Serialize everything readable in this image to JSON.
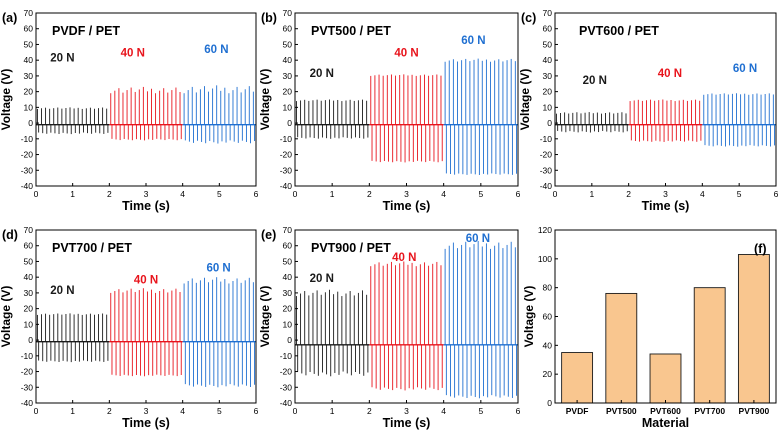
{
  "figure": {
    "panels": [
      "(a)",
      "(b)",
      "(c)",
      "(d)",
      "(e)",
      "(f)"
    ]
  },
  "colors": {
    "n20": "#1a1a1a",
    "n40": "#e8141c",
    "n60": "#1f6fd1",
    "bar_fill": "#f9c68f",
    "bar_edge": "#1a1a1a"
  },
  "chart_data": [
    {
      "type": "line",
      "panel": "(a)",
      "title": "PVDF / PET",
      "xlabel": "Time (s)",
      "ylabel": "Voltage (V)",
      "xlim": [
        0,
        6
      ],
      "ylim": [
        -40,
        70
      ],
      "xticks": [
        0,
        1,
        2,
        3,
        4,
        5,
        6
      ],
      "yticks": [
        -40,
        -30,
        -20,
        -10,
        0,
        10,
        20,
        30,
        40,
        50,
        60,
        70
      ],
      "baseline": -1,
      "series": [
        {
          "name": "20 N",
          "t_start": 0,
          "t_end": 2,
          "pulses": 18,
          "peak_max": 10,
          "peak_min": 9,
          "neg_max": -7,
          "neg_min": -6
        },
        {
          "name": "40 N",
          "t_start": 2,
          "t_end": 4,
          "pulses": 18,
          "peak_max": 23,
          "peak_min": 19,
          "neg_max": -11,
          "neg_min": -10
        },
        {
          "name": "60 N",
          "t_start": 4,
          "t_end": 6,
          "pulses": 18,
          "peak_max": 24,
          "peak_min": 19,
          "neg_max": -13,
          "neg_min": -11
        }
      ]
    },
    {
      "type": "line",
      "panel": "(b)",
      "title": "PVT500 / PET",
      "xlabel": "Time (s)",
      "ylabel": "Voltage (V)",
      "xlim": [
        0,
        6
      ],
      "ylim": [
        -40,
        70
      ],
      "xticks": [
        0,
        1,
        2,
        3,
        4,
        5,
        6
      ],
      "yticks": [
        -40,
        -30,
        -20,
        -10,
        0,
        10,
        20,
        30,
        40,
        50,
        60,
        70
      ],
      "baseline": -1,
      "series": [
        {
          "name": "20 N",
          "t_start": 0,
          "t_end": 2,
          "pulses": 18,
          "peak_max": 15,
          "peak_min": 14,
          "neg_max": -10,
          "neg_min": -9
        },
        {
          "name": "40 N",
          "t_start": 2,
          "t_end": 4,
          "pulses": 18,
          "peak_max": 31,
          "peak_min": 30,
          "neg_max": -25,
          "neg_min": -24
        },
        {
          "name": "60 N",
          "t_start": 4,
          "t_end": 6,
          "pulses": 18,
          "peak_max": 41,
          "peak_min": 39,
          "neg_max": -33,
          "neg_min": -32
        }
      ]
    },
    {
      "type": "line",
      "panel": "(c)",
      "title": "PVT600 / PET",
      "xlabel": "Time (s)",
      "ylabel": "Voltage (V)",
      "xlim": [
        0,
        6
      ],
      "ylim": [
        -40,
        70
      ],
      "xticks": [
        0,
        1,
        2,
        3,
        4,
        5,
        6
      ],
      "yticks": [
        -40,
        -30,
        -20,
        -10,
        0,
        10,
        20,
        30,
        40,
        50,
        60,
        70
      ],
      "baseline": -1,
      "series": [
        {
          "name": "20 N",
          "t_start": 0,
          "t_end": 2,
          "pulses": 18,
          "peak_max": 7,
          "peak_min": 6,
          "neg_max": -6,
          "neg_min": -5
        },
        {
          "name": "40 N",
          "t_start": 2,
          "t_end": 4,
          "pulses": 18,
          "peak_max": 15,
          "peak_min": 14,
          "neg_max": -12,
          "neg_min": -11
        },
        {
          "name": "60 N",
          "t_start": 4,
          "t_end": 6,
          "pulses": 18,
          "peak_max": 19,
          "peak_min": 18,
          "neg_max": -15,
          "neg_min": -14
        }
      ]
    },
    {
      "type": "line",
      "panel": "(d)",
      "title": "PVT700 / PET",
      "xlabel": "Time (s)",
      "ylabel": "Voltage (V)",
      "xlim": [
        0,
        6
      ],
      "ylim": [
        -40,
        70
      ],
      "xticks": [
        0,
        1,
        2,
        3,
        4,
        5,
        6
      ],
      "yticks": [
        -40,
        -30,
        -20,
        -10,
        0,
        10,
        20,
        30,
        40,
        50,
        60,
        70
      ],
      "baseline": -1,
      "series": [
        {
          "name": "20 N",
          "t_start": 0,
          "t_end": 2,
          "pulses": 18,
          "peak_max": 17,
          "peak_min": 16,
          "neg_max": -14,
          "neg_min": -13
        },
        {
          "name": "40 N",
          "t_start": 2,
          "t_end": 4,
          "pulses": 18,
          "peak_max": 33,
          "peak_min": 30,
          "neg_max": -23,
          "neg_min": -22
        },
        {
          "name": "60 N",
          "t_start": 4,
          "t_end": 6,
          "pulses": 18,
          "peak_max": 40,
          "peak_min": 36,
          "neg_max": -30,
          "neg_min": -28
        }
      ]
    },
    {
      "type": "line",
      "panel": "(e)",
      "title": "PVT900 / PET",
      "xlabel": "Time (s)",
      "ylabel": "Voltage (V)",
      "xlim": [
        0,
        6
      ],
      "ylim": [
        -40,
        70
      ],
      "xticks": [
        0,
        1,
        2,
        3,
        4,
        5,
        6
      ],
      "yticks": [
        -40,
        -30,
        -20,
        -10,
        0,
        10,
        20,
        30,
        40,
        50,
        60,
        70
      ],
      "baseline": -3,
      "series": [
        {
          "name": "20 N",
          "t_start": 0,
          "t_end": 2,
          "pulses": 18,
          "peak_max": 32,
          "peak_min": 28,
          "neg_max": -23,
          "neg_min": -20
        },
        {
          "name": "40 N",
          "t_start": 2,
          "t_end": 4,
          "pulses": 18,
          "peak_max": 50,
          "peak_min": 47,
          "neg_max": -32,
          "neg_min": -30
        },
        {
          "name": "60 N",
          "t_start": 4,
          "t_end": 6,
          "pulses": 18,
          "peak_max": 63,
          "peak_min": 58,
          "neg_max": -37,
          "neg_min": -35
        }
      ]
    },
    {
      "type": "bar",
      "panel": "(f)",
      "title": "",
      "xlabel": "Material",
      "ylabel": "Voltage (V)",
      "ylim": [
        0,
        120
      ],
      "yticks": [
        0,
        20,
        40,
        60,
        80,
        100,
        120
      ],
      "categories": [
        "PVDF",
        "PVT500",
        "PVT600",
        "PVT700",
        "PVT900"
      ],
      "values": [
        35,
        76,
        34,
        80,
        103
      ]
    }
  ]
}
